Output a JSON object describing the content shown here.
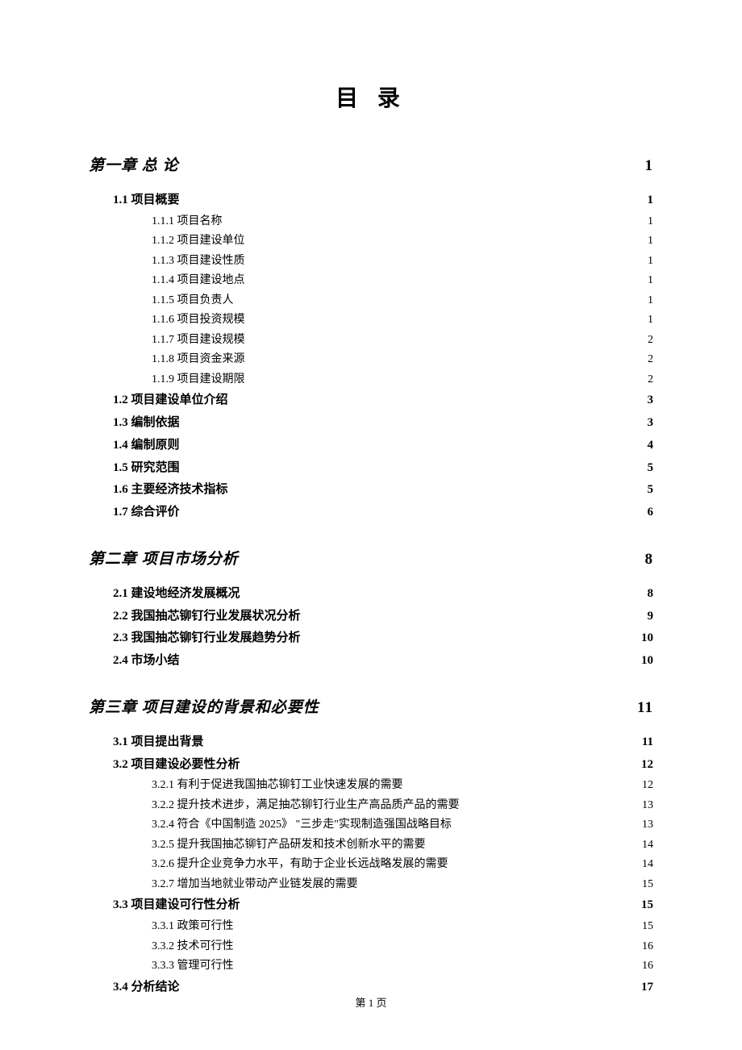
{
  "title": "目 录",
  "footer": "第 1 页",
  "toc": [
    {
      "level": 1,
      "label": "第一章 总 论",
      "page": "1"
    },
    {
      "level": 2,
      "label": "1.1 项目概要",
      "page": "1"
    },
    {
      "level": 3,
      "label": "1.1.1 项目名称",
      "page": "1"
    },
    {
      "level": 3,
      "label": "1.1.2 项目建设单位",
      "page": "1"
    },
    {
      "level": 3,
      "label": "1.1.3 项目建设性质",
      "page": "1"
    },
    {
      "level": 3,
      "label": "1.1.4 项目建设地点",
      "page": "1"
    },
    {
      "level": 3,
      "label": "1.1.5 项目负责人",
      "page": "1"
    },
    {
      "level": 3,
      "label": "1.1.6 项目投资规模",
      "page": "1"
    },
    {
      "level": 3,
      "label": "1.1.7 项目建设规模",
      "page": "2"
    },
    {
      "level": 3,
      "label": "1.1.8 项目资金来源",
      "page": "2"
    },
    {
      "level": 3,
      "label": "1.1.9 项目建设期限",
      "page": "2"
    },
    {
      "level": 2,
      "label": "1.2 项目建设单位介绍",
      "page": "3"
    },
    {
      "level": 2,
      "label": "1.3 编制依据",
      "page": "3"
    },
    {
      "level": 2,
      "label": "1.4 编制原则",
      "page": "4"
    },
    {
      "level": 2,
      "label": "1.5 研究范围",
      "page": "5"
    },
    {
      "level": 2,
      "label": "1.6 主要经济技术指标",
      "page": "5"
    },
    {
      "level": 2,
      "label": "1.7 综合评价",
      "page": "6"
    },
    {
      "level": 1,
      "label": "第二章 项目市场分析",
      "page": "8"
    },
    {
      "level": 2,
      "label": "2.1 建设地经济发展概况",
      "page": "8"
    },
    {
      "level": 2,
      "label": "2.2 我国抽芯铆钉行业发展状况分析",
      "page": "9"
    },
    {
      "level": 2,
      "label": "2.3 我国抽芯铆钉行业发展趋势分析",
      "page": "10"
    },
    {
      "level": 2,
      "label": "2.4 市场小结",
      "page": "10"
    },
    {
      "level": 1,
      "label": "第三章 项目建设的背景和必要性",
      "page": "11"
    },
    {
      "level": 2,
      "label": "3.1 项目提出背景",
      "page": "11"
    },
    {
      "level": 2,
      "label": "3.2 项目建设必要性分析",
      "page": "12"
    },
    {
      "level": 3,
      "label": "3.2.1 有利于促进我国抽芯铆钉工业快速发展的需要",
      "page": "12"
    },
    {
      "level": 3,
      "label": "3.2.2 提升技术进步，满足抽芯铆钉行业生产高品质产品的需要",
      "page": "13"
    },
    {
      "level": 3,
      "label": "3.2.4 符合《中国制造 2025》 \"三步走\"实现制造强国战略目标",
      "page": "13"
    },
    {
      "level": 3,
      "label": "3.2.5 提升我国抽芯铆钉产品研发和技术创新水平的需要",
      "page": "14"
    },
    {
      "level": 3,
      "label": "3.2.6 提升企业竞争力水平，有助于企业长远战略发展的需要",
      "page": "14"
    },
    {
      "level": 3,
      "label": "3.2.7 增加当地就业带动产业链发展的需要",
      "page": "15"
    },
    {
      "level": 2,
      "label": "3.3 项目建设可行性分析",
      "page": "15"
    },
    {
      "level": 3,
      "label": "3.3.1 政策可行性",
      "page": "15"
    },
    {
      "level": 3,
      "label": "3.3.2 技术可行性",
      "page": "16"
    },
    {
      "level": 3,
      "label": "3.3.3 管理可行性",
      "page": "16"
    },
    {
      "level": 2,
      "label": "3.4 分析结论",
      "page": "17"
    }
  ]
}
